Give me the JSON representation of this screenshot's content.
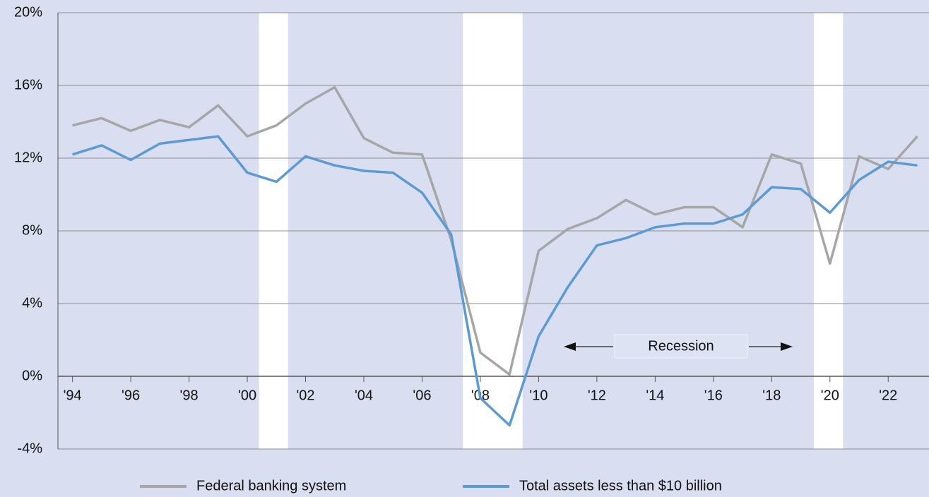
{
  "chart_data": {
    "type": "line",
    "x": [
      1994,
      1995,
      1996,
      1997,
      1998,
      1999,
      2000,
      2001,
      2002,
      2003,
      2004,
      2005,
      2006,
      2007,
      2008,
      2009,
      2010,
      2011,
      2012,
      2013,
      2014,
      2015,
      2016,
      2017,
      2018,
      2019,
      2020,
      2021,
      2022,
      2023
    ],
    "series": [
      {
        "name": "Federal banking system",
        "color": "#a6a6a6",
        "values": [
          13.8,
          14.2,
          13.5,
          14.1,
          13.7,
          14.9,
          13.2,
          13.8,
          15.0,
          15.9,
          13.1,
          12.3,
          12.2,
          7.5,
          1.3,
          0.1,
          6.9,
          8.1,
          8.7,
          9.7,
          8.9,
          9.3,
          9.3,
          8.2,
          12.2,
          11.7,
          6.2,
          12.1,
          11.4,
          13.2
        ]
      },
      {
        "name": "Total assets less than $10 billion",
        "color": "#5b9bd5",
        "values": [
          12.2,
          12.7,
          11.9,
          12.8,
          13.0,
          13.2,
          11.2,
          10.7,
          12.1,
          11.6,
          11.3,
          11.2,
          10.1,
          7.8,
          -1.2,
          -2.7,
          2.2,
          4.9,
          7.2,
          7.6,
          8.2,
          8.4,
          8.4,
          8.9,
          10.4,
          10.3,
          9.0,
          10.8,
          11.8,
          11.6
        ]
      }
    ],
    "recessions": [
      [
        2000.4,
        2001.4
      ],
      [
        2007.4,
        2009.45
      ],
      [
        2019.45,
        2020.45
      ]
    ],
    "annotation": "Recession",
    "xlim": [
      1993.5,
      2023.4
    ],
    "xticks": [
      {
        "value": 1994,
        "label": "'94"
      },
      {
        "value": 1996,
        "label": "'96"
      },
      {
        "value": 1998,
        "label": "'98"
      },
      {
        "value": 2000,
        "label": "'00"
      },
      {
        "value": 2002,
        "label": "'02"
      },
      {
        "value": 2004,
        "label": "'04"
      },
      {
        "value": 2006,
        "label": "'06"
      },
      {
        "value": 2008,
        "label": "'08"
      },
      {
        "value": 2010,
        "label": "'10"
      },
      {
        "value": 2012,
        "label": "'12"
      },
      {
        "value": 2014,
        "label": "'14"
      },
      {
        "value": 2016,
        "label": "'16"
      },
      {
        "value": 2018,
        "label": "'18"
      },
      {
        "value": 2020,
        "label": "'20"
      },
      {
        "value": 2022,
        "label": "'22"
      }
    ],
    "ylim": [
      -4,
      20
    ],
    "yticks": [
      {
        "value": -4,
        "label": "-4%"
      },
      {
        "value": 0,
        "label": "0%"
      },
      {
        "value": 4,
        "label": "4%"
      },
      {
        "value": 8,
        "label": "8%"
      },
      {
        "value": 12,
        "label": "12%"
      },
      {
        "value": 16,
        "label": "16%"
      },
      {
        "value": 20,
        "label": "20%"
      }
    ],
    "grid": true,
    "legend": "bottom"
  }
}
